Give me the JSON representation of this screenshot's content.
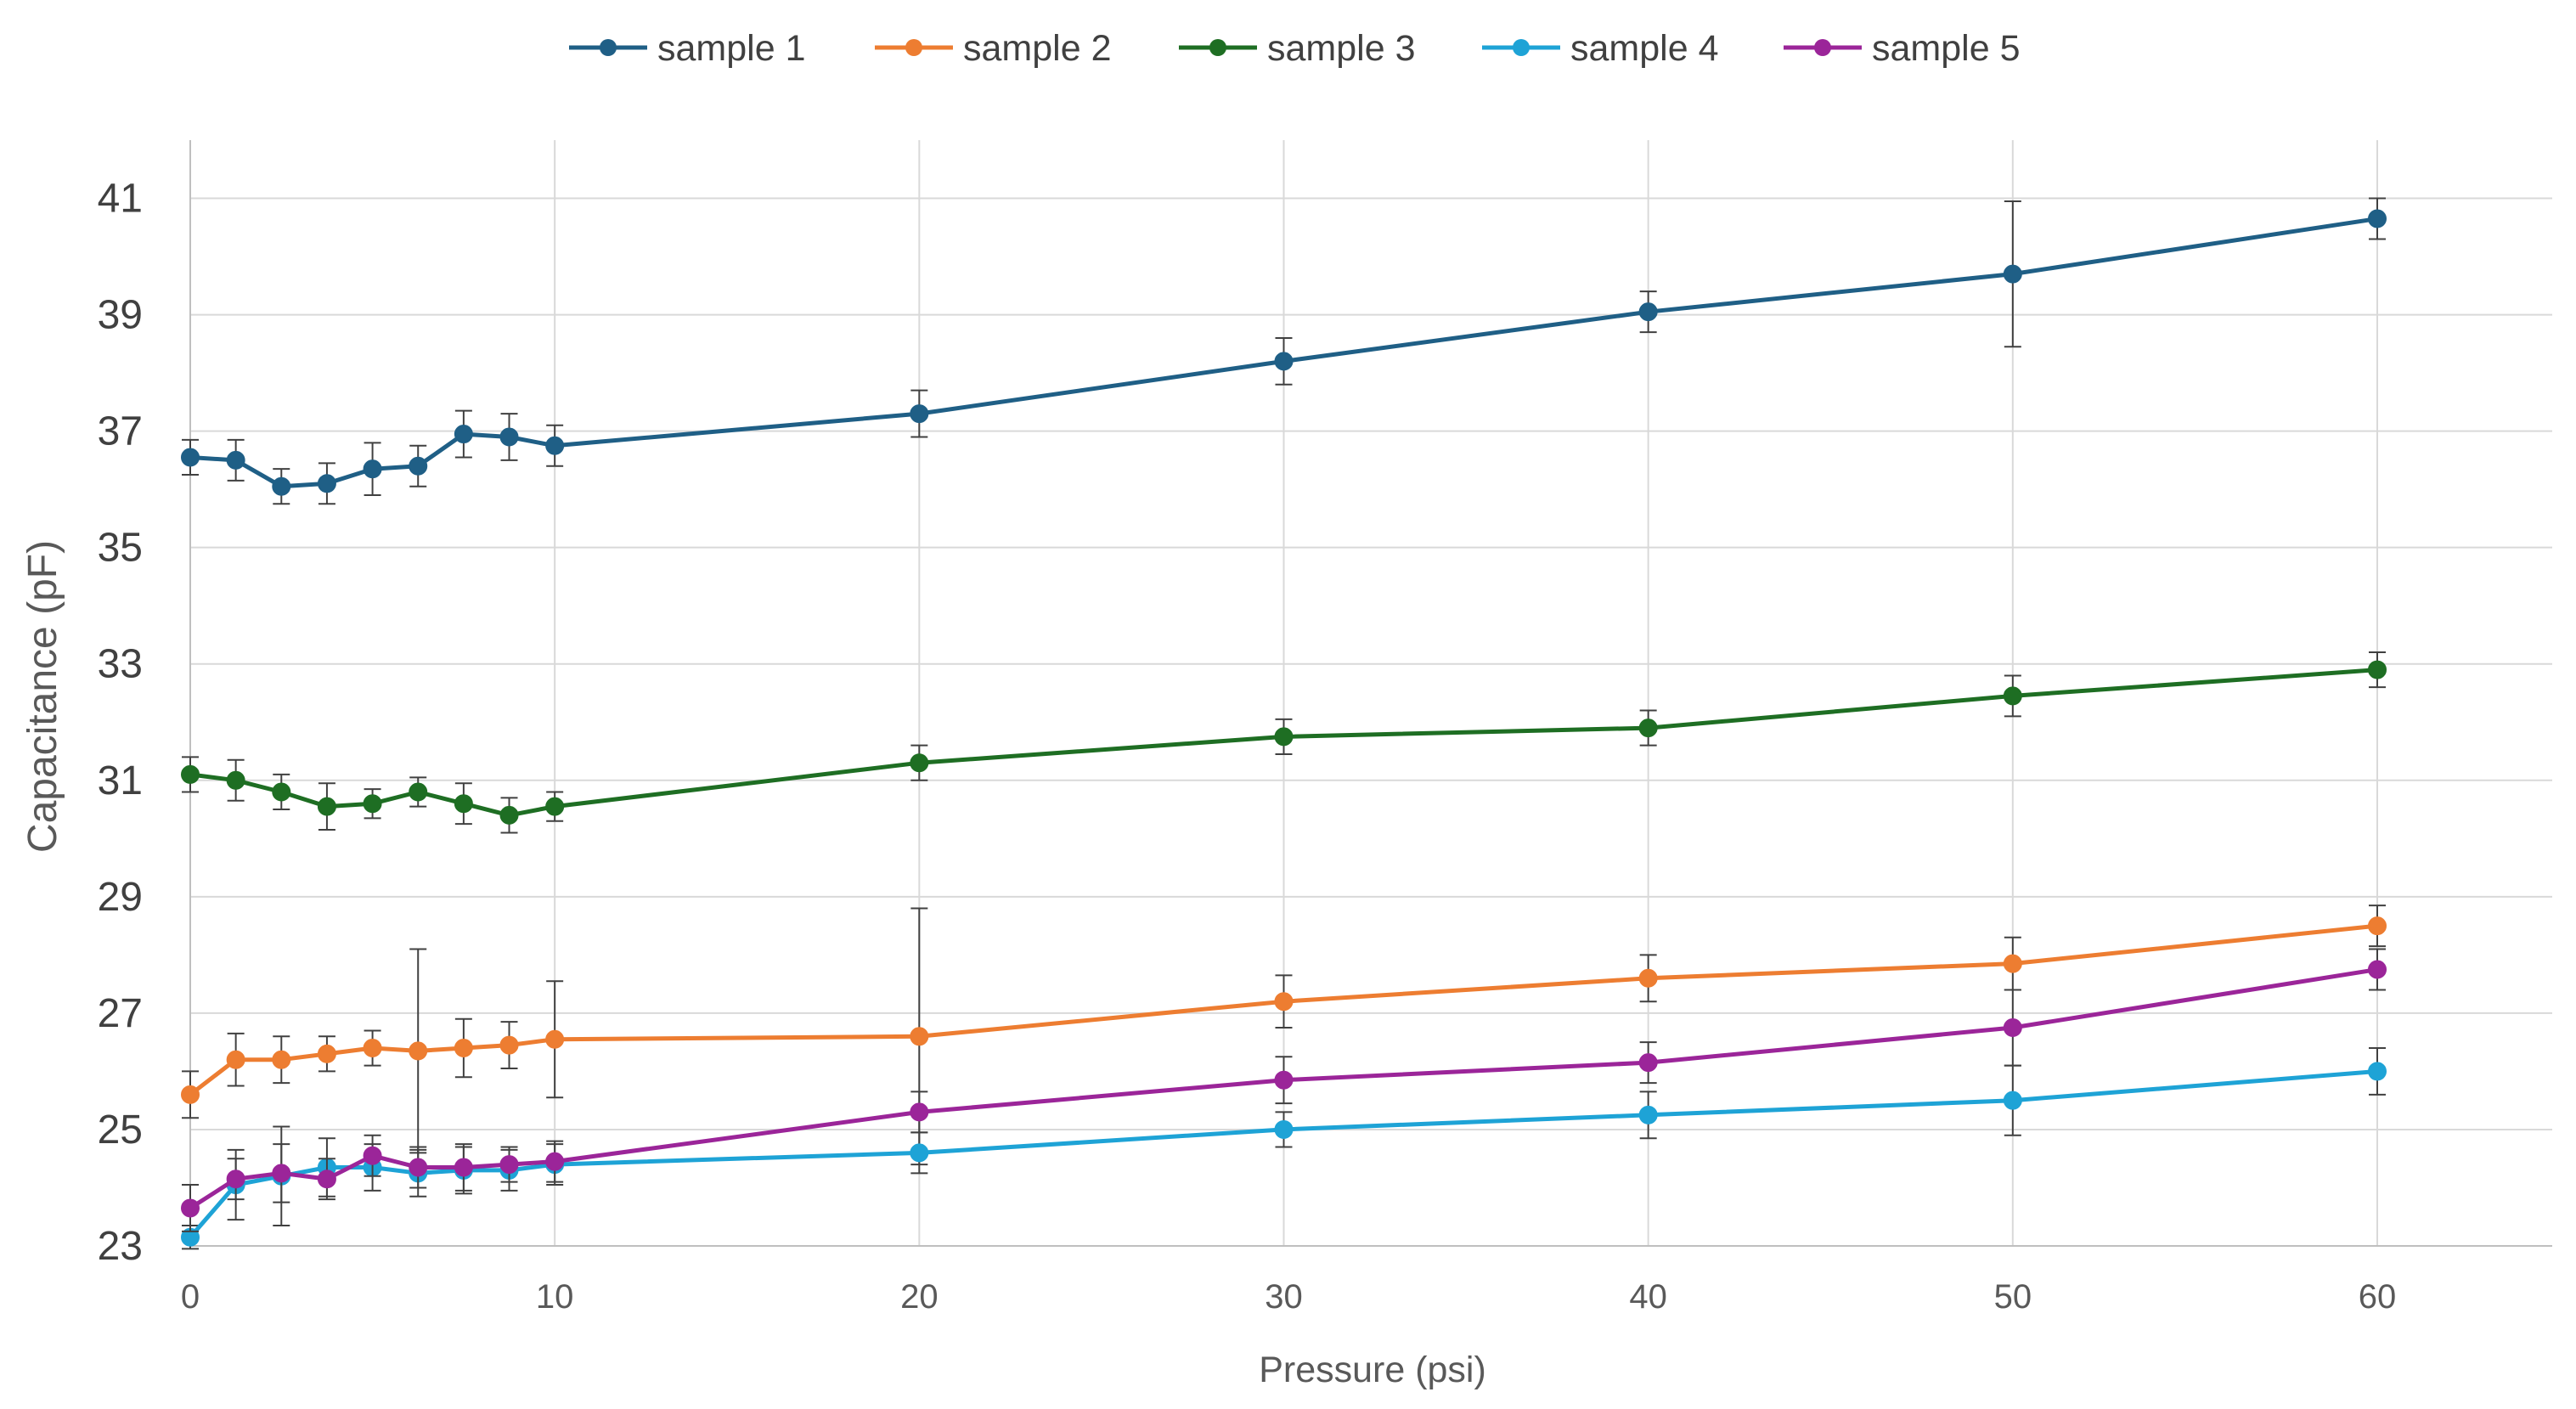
{
  "chart_data": {
    "type": "line",
    "title": "",
    "xlabel": "Pressure (psi)",
    "ylabel": "Capacitance (pF)",
    "xlim": [
      0,
      64.8
    ],
    "ylim": [
      23,
      42
    ],
    "x_ticks": [
      0,
      10,
      20,
      30,
      40,
      50,
      60
    ],
    "y_ticks": [
      23,
      25,
      27,
      29,
      31,
      33,
      35,
      37,
      39,
      41
    ],
    "grid": true,
    "legend_position": "top",
    "x": [
      0,
      1.25,
      2.5,
      3.75,
      5,
      6.25,
      7.5,
      8.75,
      10,
      20,
      30,
      40,
      50,
      60
    ],
    "series": [
      {
        "name": "sample 1",
        "color": "#1f5f86",
        "values": [
          36.55,
          36.5,
          36.05,
          36.1,
          36.35,
          36.4,
          36.95,
          36.9,
          36.75,
          37.3,
          38.2,
          39.05,
          39.7,
          40.65
        ],
        "errors": [
          0.3,
          0.35,
          0.3,
          0.35,
          0.45,
          0.35,
          0.4,
          0.4,
          0.35,
          0.4,
          0.4,
          0.35,
          1.25,
          0.35
        ]
      },
      {
        "name": "sample 2",
        "color": "#ed7d31",
        "values": [
          25.6,
          26.2,
          26.2,
          26.3,
          26.4,
          26.35,
          26.4,
          26.45,
          26.55,
          26.6,
          27.2,
          27.6,
          27.85,
          28.5
        ],
        "errors": [
          0.4,
          0.45,
          0.4,
          0.3,
          0.3,
          1.75,
          0.5,
          0.4,
          1.0,
          2.2,
          0.45,
          0.4,
          0.45,
          0.35
        ]
      },
      {
        "name": "sample 3",
        "color": "#1e6e23",
        "values": [
          31.1,
          31.0,
          30.8,
          30.55,
          30.6,
          30.8,
          30.6,
          30.4,
          30.55,
          31.3,
          31.75,
          31.9,
          32.45,
          32.9
        ],
        "errors": [
          0.3,
          0.35,
          0.3,
          0.4,
          0.25,
          0.25,
          0.35,
          0.3,
          0.25,
          0.3,
          0.3,
          0.3,
          0.35,
          0.3
        ]
      },
      {
        "name": "sample 4",
        "color": "#1ea3d6",
        "values": [
          23.15,
          24.05,
          24.2,
          24.35,
          24.35,
          24.25,
          24.3,
          24.3,
          24.4,
          24.6,
          25.0,
          25.25,
          25.5,
          26.0
        ],
        "errors": [
          0.2,
          0.6,
          0.85,
          0.5,
          0.4,
          0.4,
          0.4,
          0.35,
          0.35,
          0.35,
          0.3,
          0.4,
          0.6,
          0.4
        ]
      },
      {
        "name": "sample 5",
        "color": "#9b2599",
        "values": [
          23.65,
          24.15,
          24.25,
          24.15,
          24.55,
          24.35,
          24.35,
          24.4,
          24.45,
          25.3,
          25.85,
          26.15,
          26.75,
          27.75
        ],
        "errors": [
          0.4,
          0.35,
          0.5,
          0.35,
          0.35,
          0.35,
          0.4,
          0.3,
          0.35,
          0.35,
          0.4,
          0.35,
          0.65,
          0.35
        ]
      }
    ]
  }
}
